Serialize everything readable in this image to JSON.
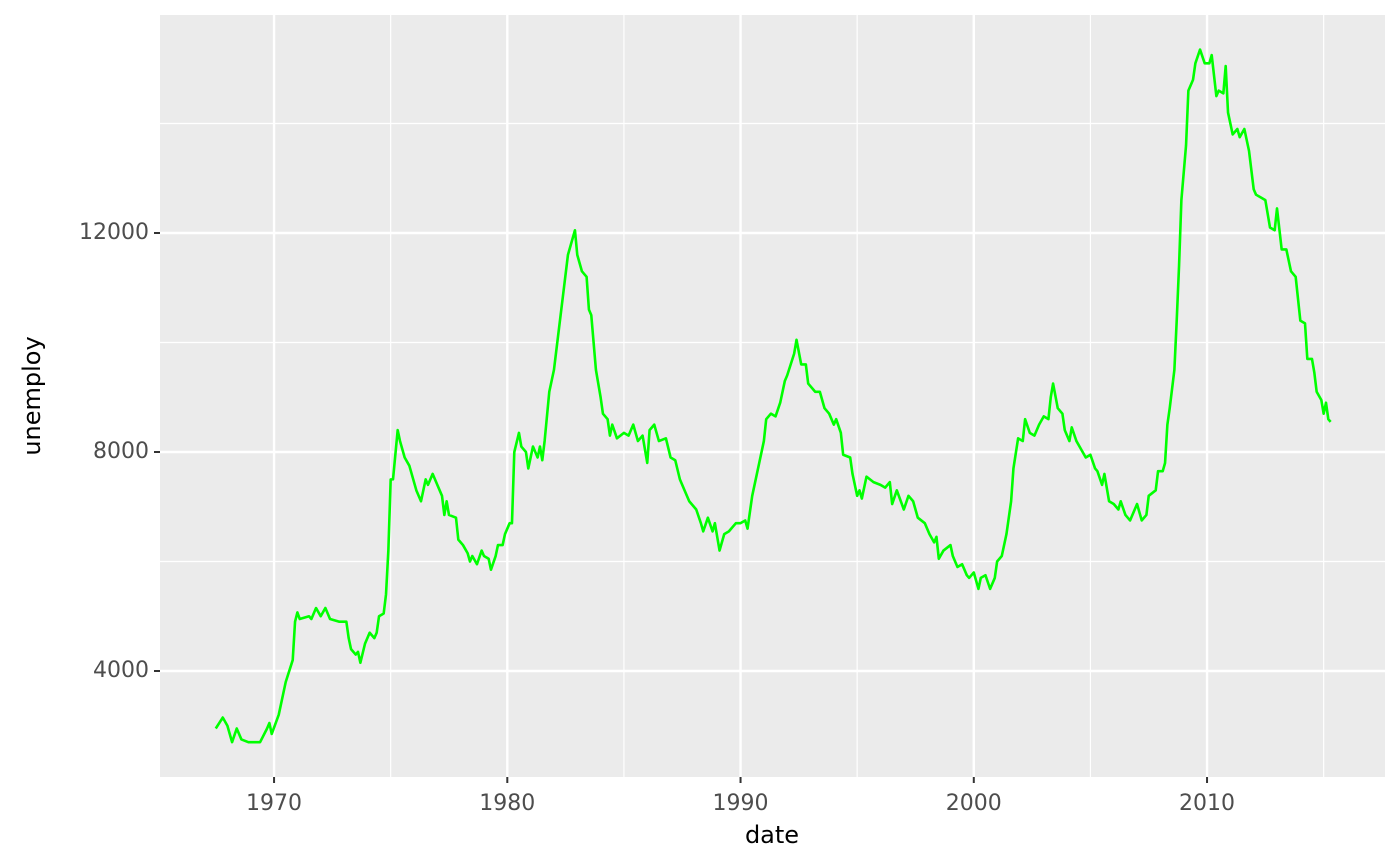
{
  "chart_data": {
    "type": "line",
    "x_label": "date",
    "y_label": "unemploy",
    "xlim": [
      1965.11,
      2017.63
    ],
    "ylim": [
      2064,
      15982
    ],
    "xticks": [
      1970,
      1980,
      1990,
      2000,
      2010
    ],
    "yticks": [
      4000,
      8000,
      12000
    ],
    "xminorticks": [
      1975,
      1985,
      1995,
      2005,
      2015
    ],
    "yminorticks": [
      6000,
      10000,
      14000
    ],
    "grid": true,
    "series": [
      {
        "name": "unemploy",
        "color": "#00ff00",
        "x": [
          1967.5,
          1967.8,
          1968.0,
          1968.2,
          1968.4,
          1968.6,
          1968.9,
          1969.4,
          1969.7,
          1969.8,
          1969.9,
          1970.2,
          1970.5,
          1970.8,
          1970.9,
          1971.0,
          1971.1,
          1971.5,
          1971.6,
          1971.8,
          1972.0,
          1972.2,
          1972.4,
          1972.8,
          1973.1,
          1973.2,
          1973.3,
          1973.5,
          1973.6,
          1973.7,
          1973.9,
          1974.1,
          1974.3,
          1974.4,
          1974.5,
          1974.7,
          1974.8,
          1974.9,
          1975.0,
          1975.1,
          1975.3,
          1975.4,
          1975.6,
          1975.8,
          1976.1,
          1976.3,
          1976.5,
          1976.6,
          1976.8,
          1977.0,
          1977.2,
          1977.3,
          1977.4,
          1977.5,
          1977.8,
          1977.9,
          1978.1,
          1978.3,
          1978.4,
          1978.5,
          1978.7,
          1978.9,
          1979.0,
          1979.2,
          1979.3,
          1979.5,
          1979.6,
          1979.8,
          1979.9,
          1980.1,
          1980.2,
          1980.3,
          1980.5,
          1980.6,
          1980.8,
          1980.9,
          1981.1,
          1981.3,
          1981.4,
          1981.5,
          1981.6,
          1981.8,
          1982.0,
          1982.2,
          1982.4,
          1982.6,
          1982.9,
          1983.0,
          1983.2,
          1983.4,
          1983.5,
          1983.6,
          1983.8,
          1984.0,
          1984.1,
          1984.3,
          1984.4,
          1984.5,
          1984.7,
          1985.0,
          1985.2,
          1985.4,
          1985.6,
          1985.8,
          1986.0,
          1986.1,
          1986.3,
          1986.5,
          1986.8,
          1987.0,
          1987.2,
          1987.4,
          1987.6,
          1987.8,
          1988.1,
          1988.3,
          1988.4,
          1988.6,
          1988.8,
          1988.9,
          1989.1,
          1989.3,
          1989.5,
          1989.8,
          1990.0,
          1990.2,
          1990.3,
          1990.5,
          1990.8,
          1991.0,
          1991.1,
          1991.3,
          1991.5,
          1991.7,
          1991.9,
          1992.0,
          1992.3,
          1992.4,
          1992.6,
          1992.8,
          1992.9,
          1993.2,
          1993.4,
          1993.6,
          1993.8,
          1994.0,
          1994.1,
          1994.3,
          1994.4,
          1994.7,
          1994.8,
          1995.0,
          1995.1,
          1995.2,
          1995.4,
          1995.7,
          1996.0,
          1996.2,
          1996.4,
          1996.5,
          1996.7,
          1997.0,
          1997.2,
          1997.4,
          1997.6,
          1997.9,
          1998.1,
          1998.3,
          1998.4,
          1998.5,
          1998.7,
          1999.0,
          1999.1,
          1999.3,
          1999.5,
          1999.7,
          1999.8,
          2000.0,
          2000.2,
          2000.3,
          2000.5,
          2000.7,
          2000.9,
          2001.0,
          2001.2,
          2001.4,
          2001.6,
          2001.7,
          2001.9,
          2002.1,
          2002.2,
          2002.4,
          2002.6,
          2002.8,
          2003.0,
          2003.2,
          2003.3,
          2003.4,
          2003.6,
          2003.8,
          2003.9,
          2004.1,
          2004.2,
          2004.4,
          2004.6,
          2004.8,
          2005.0,
          2005.2,
          2005.3,
          2005.5,
          2005.6,
          2005.8,
          2006.0,
          2006.2,
          2006.3,
          2006.5,
          2006.7,
          2007.0,
          2007.2,
          2007.4,
          2007.5,
          2007.8,
          2007.9,
          2008.1,
          2008.2,
          2008.3,
          2008.4,
          2008.6,
          2008.7,
          2008.8,
          2008.9,
          2009.1,
          2009.2,
          2009.4,
          2009.5,
          2009.7,
          2009.9,
          2010.1,
          2010.2,
          2010.4,
          2010.5,
          2010.7,
          2010.8,
          2010.9,
          2011.1,
          2011.3,
          2011.4,
          2011.6,
          2011.8,
          2012.0,
          2012.1,
          2012.3,
          2012.5,
          2012.7,
          2012.9,
          2013.0,
          2013.2,
          2013.4,
          2013.6,
          2013.8,
          2014.0,
          2014.2,
          2014.3,
          2014.5,
          2014.6,
          2014.7,
          2014.9,
          2015.0,
          2015.1,
          2015.2,
          2015.3
        ],
        "values": [
          2950,
          3150,
          3000,
          2700,
          2950,
          2750,
          2700,
          2700,
          2950,
          3050,
          2850,
          3200,
          3800,
          4200,
          4900,
          5070,
          4950,
          5000,
          4950,
          5150,
          5000,
          5150,
          4950,
          4900,
          4900,
          4600,
          4400,
          4300,
          4350,
          4150,
          4500,
          4700,
          4600,
          4700,
          5000,
          5050,
          5400,
          6200,
          7500,
          7500,
          8400,
          8200,
          7900,
          7750,
          7300,
          7100,
          7500,
          7400,
          7600,
          7400,
          7200,
          6850,
          7100,
          6850,
          6800,
          6400,
          6300,
          6150,
          6000,
          6100,
          5950,
          6200,
          6100,
          6050,
          5850,
          6100,
          6300,
          6300,
          6500,
          6700,
          6700,
          8000,
          8350,
          8100,
          8000,
          7700,
          8100,
          7900,
          8100,
          7850,
          8200,
          9100,
          9500,
          10200,
          10900,
          11600,
          12050,
          11600,
          11300,
          11200,
          10600,
          10500,
          9500,
          9000,
          8700,
          8600,
          8300,
          8500,
          8250,
          8350,
          8300,
          8500,
          8200,
          8300,
          7800,
          8400,
          8500,
          8200,
          8250,
          7900,
          7850,
          7500,
          7300,
          7100,
          6950,
          6700,
          6550,
          6800,
          6550,
          6700,
          6200,
          6500,
          6550,
          6700,
          6700,
          6750,
          6600,
          7200,
          7800,
          8200,
          8600,
          8700,
          8650,
          8900,
          9300,
          9400,
          9800,
          10050,
          9600,
          9600,
          9250,
          9100,
          9100,
          8800,
          8700,
          8500,
          8600,
          8350,
          7950,
          7900,
          7600,
          7200,
          7300,
          7150,
          7550,
          7450,
          7400,
          7350,
          7450,
          7050,
          7300,
          6950,
          7200,
          7100,
          6800,
          6700,
          6500,
          6350,
          6450,
          6050,
          6200,
          6300,
          6100,
          5900,
          5950,
          5750,
          5700,
          5800,
          5500,
          5700,
          5750,
          5500,
          5700,
          6000,
          6100,
          6500,
          7100,
          7700,
          8250,
          8200,
          8600,
          8350,
          8300,
          8500,
          8650,
          8600,
          9000,
          9250,
          8800,
          8700,
          8400,
          8200,
          8450,
          8200,
          8050,
          7900,
          7950,
          7700,
          7650,
          7400,
          7600,
          7100,
          7050,
          6950,
          7100,
          6850,
          6750,
          7050,
          6750,
          6850,
          7200,
          7300,
          7650,
          7650,
          7800,
          8500,
          8800,
          9500,
          10400,
          11400,
          12600,
          13600,
          14600,
          14800,
          15100,
          15350,
          15100,
          15100,
          15250,
          14500,
          14600,
          14550,
          15050,
          14200,
          13800,
          13900,
          13750,
          13900,
          13500,
          12800,
          12700,
          12650,
          12600,
          12100,
          12050,
          12450,
          11700,
          11700,
          11300,
          11200,
          10400,
          10350,
          9700,
          9700,
          9450,
          9100,
          8950,
          8700,
          8900,
          8600,
          8550
        ]
      }
    ]
  }
}
